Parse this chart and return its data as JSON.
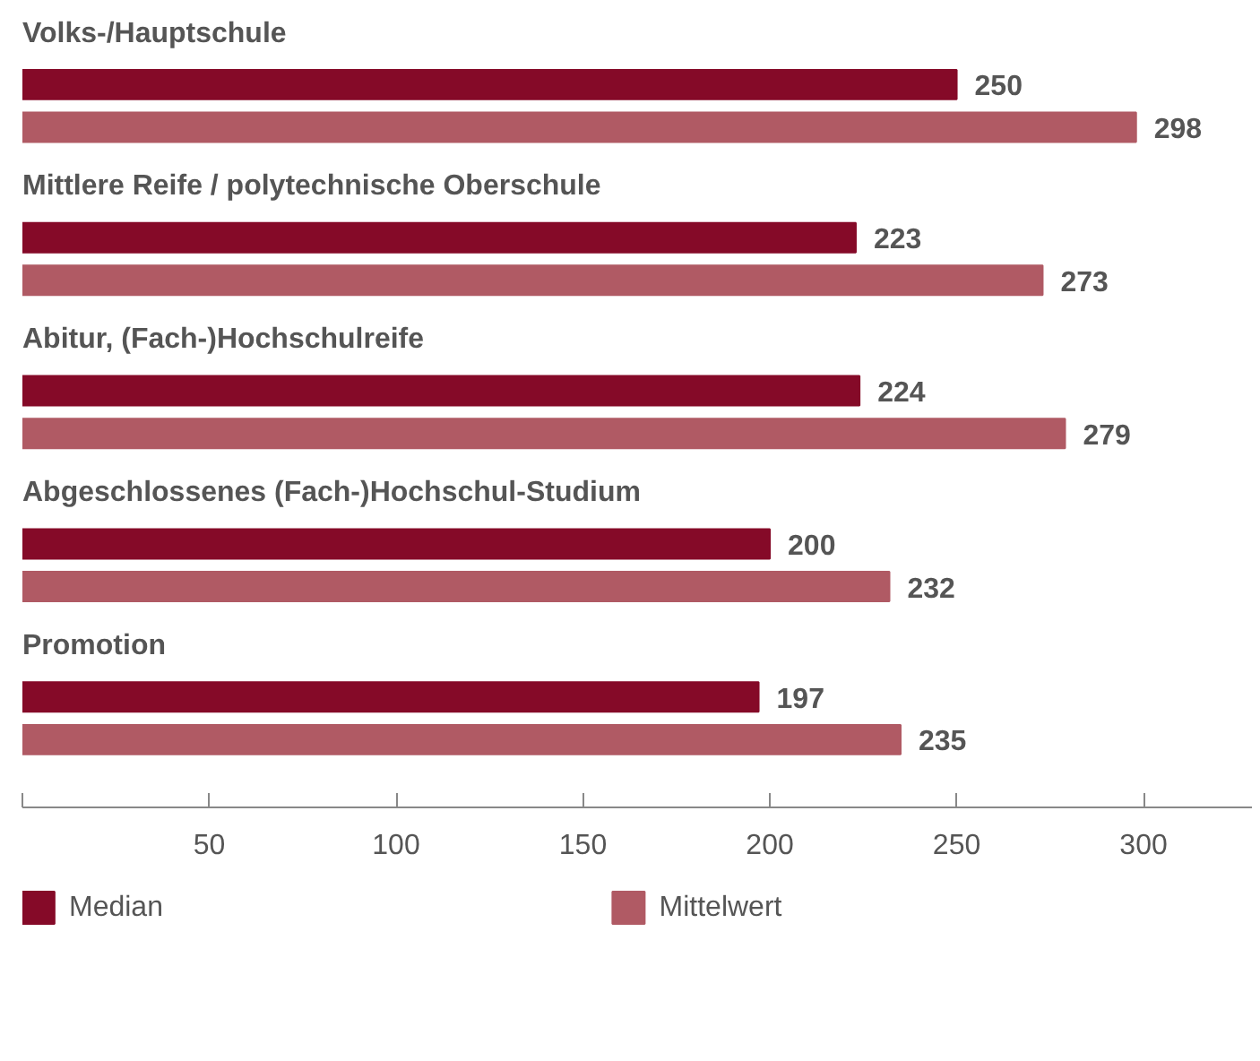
{
  "chart_data": {
    "type": "bar",
    "orientation": "horizontal",
    "categories": [
      "Volks-/Hauptschule",
      "Mittlere Reife / polytechnische Oberschule",
      "Abitur, (Fach-)Hochschulreife",
      "Abgeschlossenes (Fach-)Hochschul-Studium",
      "Promotion"
    ],
    "series": [
      {
        "name": "Median",
        "color": "#850a28",
        "values": [
          250,
          223,
          224,
          200,
          197
        ]
      },
      {
        "name": "Mittelwert",
        "color": "#b05a64",
        "values": [
          298,
          273,
          279,
          232,
          235
        ]
      }
    ],
    "xlim": [
      0,
      329
    ],
    "xticks": [
      {
        "value": 0,
        "label": null
      },
      50,
      100,
      150,
      200,
      250,
      300
    ],
    "data_labels": true,
    "grid": false,
    "legend": "bottom"
  }
}
